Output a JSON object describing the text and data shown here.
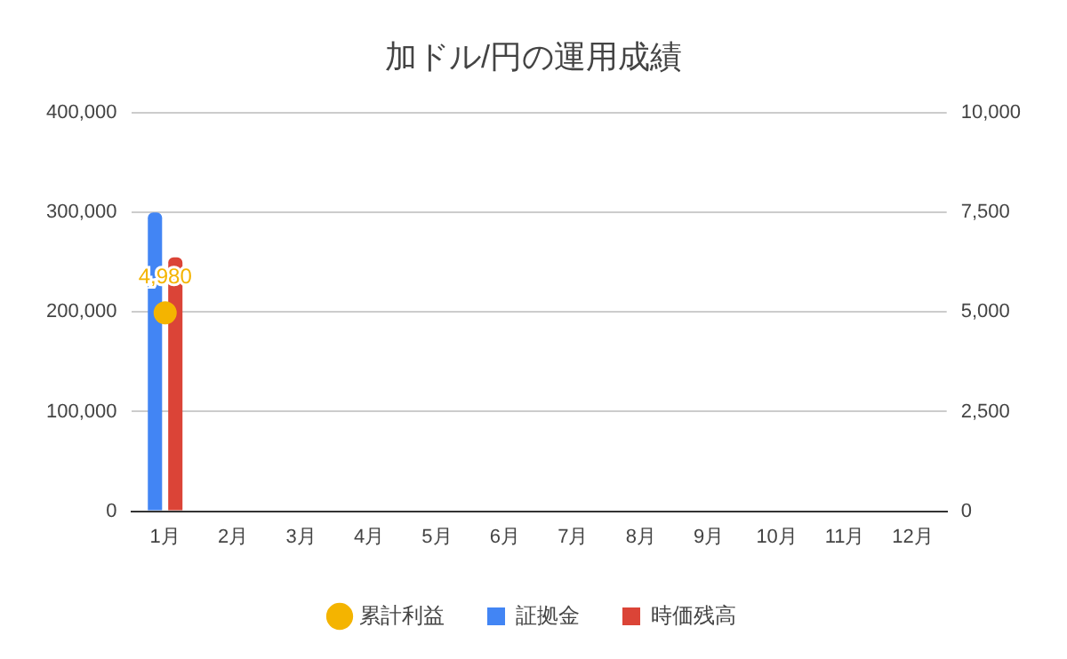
{
  "chart_data": {
    "type": "bar",
    "title": "加ドル/円の運用成績",
    "categories": [
      "1月",
      "2月",
      "3月",
      "4月",
      "5月",
      "6月",
      "7月",
      "8月",
      "9月",
      "10月",
      "11月",
      "12月"
    ],
    "series": [
      {
        "name": "証拠金",
        "color": "#4285f4",
        "values": [
          300000,
          null,
          null,
          null,
          null,
          null,
          null,
          null,
          null,
          null,
          null,
          null
        ]
      },
      {
        "name": "時価残高",
        "color": "#db4437",
        "values": [
          255000,
          null,
          null,
          null,
          null,
          null,
          null,
          null,
          null,
          null,
          null,
          null
        ]
      },
      {
        "name": "累計利益",
        "type": "line",
        "axis": "y2",
        "color": "#f4b400",
        "marker": "circle",
        "values": [
          4980,
          null,
          null,
          null,
          null,
          null,
          null,
          null,
          null,
          null,
          null,
          null
        ],
        "value_labels": [
          "4,980",
          null,
          null,
          null,
          null,
          null,
          null,
          null,
          null,
          null,
          null,
          null
        ]
      }
    ],
    "ylim": [
      0,
      400000
    ],
    "yticks": [
      {
        "value": 0,
        "label": "0"
      },
      {
        "value": 100000,
        "label": "100,000"
      },
      {
        "value": 200000,
        "label": "200,000"
      },
      {
        "value": 300000,
        "label": "300,000"
      },
      {
        "value": 400000,
        "label": "400,000"
      }
    ],
    "y2lim": [
      0,
      10000
    ],
    "y2ticks": [
      {
        "value": 0,
        "label": "0"
      },
      {
        "value": 2500,
        "label": "2,500"
      },
      {
        "value": 5000,
        "label": "5,000"
      },
      {
        "value": 7500,
        "label": "7,500"
      },
      {
        "value": 10000,
        "label": "10,000"
      }
    ],
    "grid": "y",
    "legend": "bottom"
  }
}
